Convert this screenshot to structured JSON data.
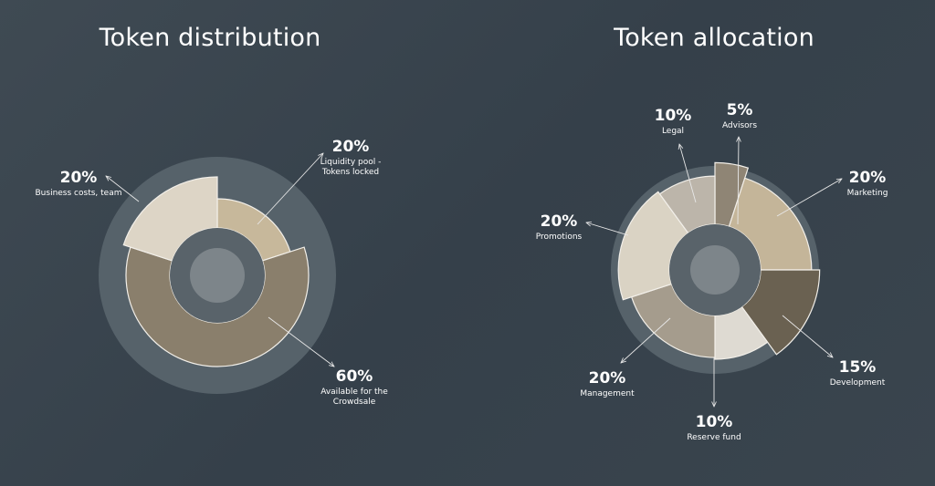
{
  "chart_data": [
    {
      "type": "pie",
      "title": "Token distribution",
      "slices": [
        {
          "value": 20,
          "pct_label": "20%",
          "label_lines": [
            "Liquidity pool -",
            "Tokens locked"
          ],
          "color": "#c7b89b",
          "radius_scale": 0.84
        },
        {
          "value": 60,
          "pct_label": "60%",
          "label_lines": [
            "Available for the",
            "Crowdsale"
          ],
          "color": "#8a7f6c",
          "radius_scale": 1.0
        },
        {
          "value": 20,
          "pct_label": "20%",
          "label_lines": [
            "Business costs, team"
          ],
          "color": "#ddd5c6",
          "radius_scale": 1.08
        }
      ]
    },
    {
      "type": "pie",
      "title": "Token allocation",
      "slices": [
        {
          "value": 5,
          "pct_label": "5%",
          "label_lines": [
            "Advisors"
          ],
          "color": "#8f8575",
          "radius_scale": 1.2
        },
        {
          "value": 20,
          "pct_label": "20%",
          "label_lines": [
            "Marketing"
          ],
          "color": "#c4b599",
          "radius_scale": 1.08
        },
        {
          "value": 15,
          "pct_label": "15%",
          "label_lines": [
            "Development"
          ],
          "color": "#6a6151",
          "radius_scale": 1.17
        },
        {
          "value": 10,
          "pct_label": "10%",
          "label_lines": [
            "Reserve fund"
          ],
          "color": "#dedad2",
          "radius_scale": 1.0
        },
        {
          "value": 20,
          "pct_label": "20%",
          "label_lines": [
            "Management"
          ],
          "color": "#a59c8d",
          "radius_scale": 0.98
        },
        {
          "value": 20,
          "pct_label": "20%",
          "label_lines": [
            "Promotions"
          ],
          "color": "#dad3c4",
          "radius_scale": 1.08
        },
        {
          "value": 10,
          "pct_label": "10%",
          "label_lines": [
            "Legal"
          ],
          "color": "#bcb5aa",
          "radius_scale": 1.05
        }
      ]
    }
  ]
}
